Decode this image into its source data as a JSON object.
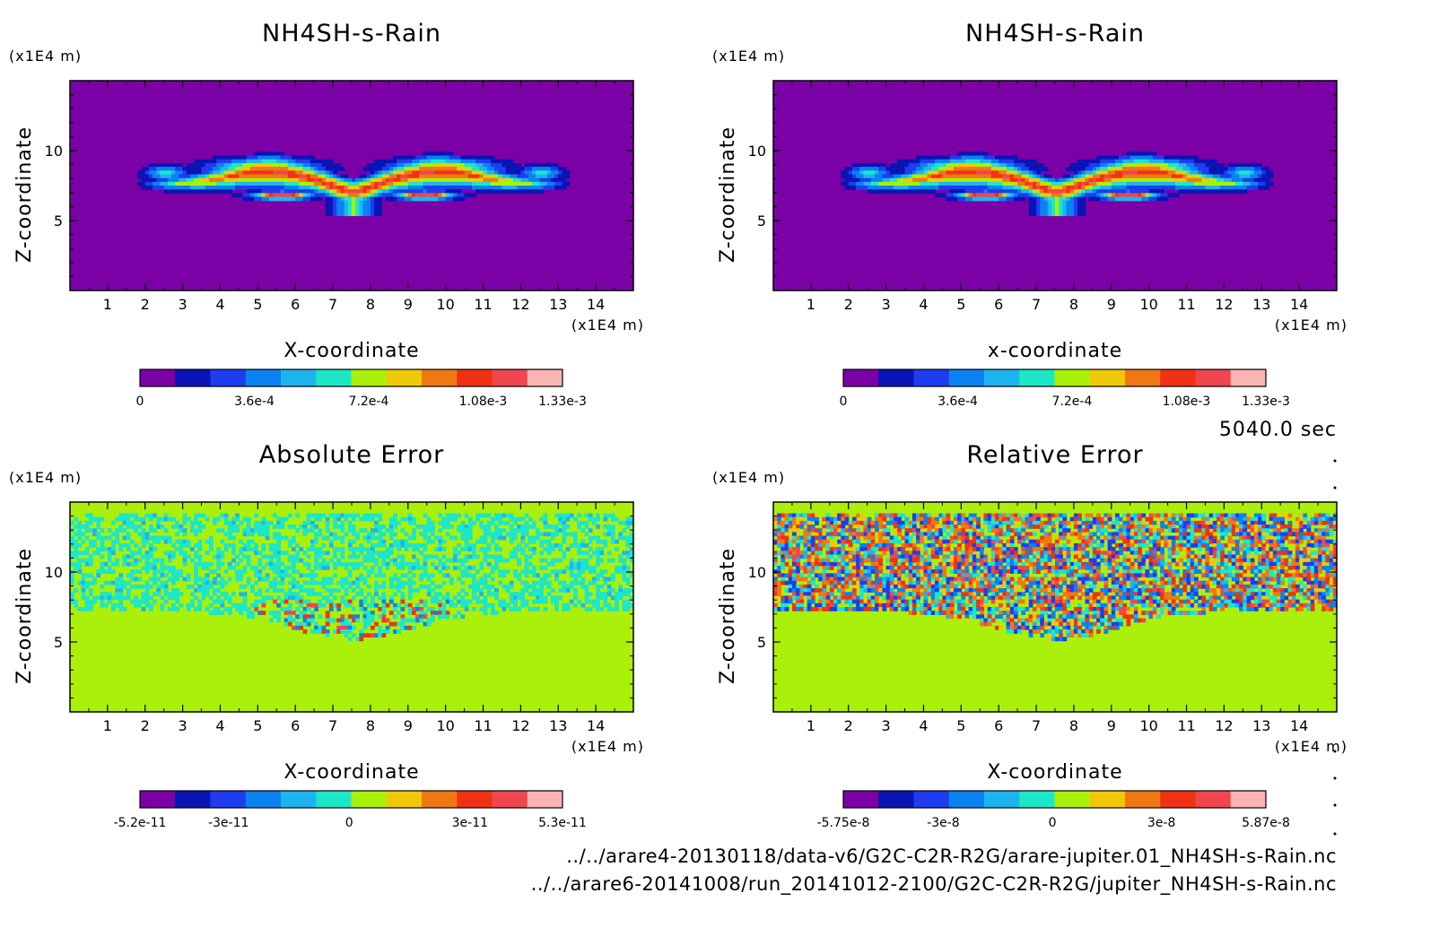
{
  "chart_data": [
    {
      "type": "heatmap",
      "title": "NH4SH-s-Rain",
      "xlabel": "X-coordinate",
      "ylabel": "Z-coordinate",
      "x_unit": "(x1E4 m)",
      "y_unit": "(x1E4 m)",
      "x_ticks": [
        "1",
        "2",
        "3",
        "4",
        "5",
        "6",
        "7",
        "8",
        "9",
        "10",
        "11",
        "12",
        "13",
        "14"
      ],
      "y_ticks": [
        "5",
        "10"
      ],
      "xlim": [
        0,
        15
      ],
      "ylim": [
        0,
        15
      ],
      "pattern": "plume",
      "colorbar": {
        "labels": [
          "0",
          "3.6e-4",
          "7.2e-4",
          "1.08e-3",
          "1.33e-3"
        ],
        "label_values": [
          0,
          0.00036,
          0.00072,
          0.00108,
          0.00133
        ],
        "range": [
          0,
          0.00133
        ],
        "colors": [
          "#7b00a6",
          "#0a14b4",
          "#1e3cf0",
          "#0a82f0",
          "#1eb4f0",
          "#1ee6c8",
          "#aaf00a",
          "#f0c80a",
          "#f07814",
          "#f03214",
          "#f04650",
          "#fab4b4"
        ]
      }
    },
    {
      "type": "heatmap",
      "title": "NH4SH-s-Rain",
      "xlabel": "x-coordinate",
      "ylabel": "Z-coordinate",
      "x_unit": "(x1E4 m)",
      "y_unit": "(x1E4 m)",
      "x_ticks": [
        "1",
        "2",
        "3",
        "4",
        "5",
        "6",
        "7",
        "8",
        "9",
        "10",
        "11",
        "12",
        "13",
        "14"
      ],
      "y_ticks": [
        "5",
        "10"
      ],
      "xlim": [
        0,
        15
      ],
      "ylim": [
        0,
        15
      ],
      "pattern": "plume",
      "colorbar": {
        "labels": [
          "0",
          "3.6e-4",
          "7.2e-4",
          "1.08e-3",
          "1.33e-3"
        ],
        "label_values": [
          0,
          0.00036,
          0.00072,
          0.00108,
          0.00133
        ],
        "range": [
          0,
          0.00133
        ],
        "colors": [
          "#7b00a6",
          "#0a14b4",
          "#1e3cf0",
          "#0a82f0",
          "#1eb4f0",
          "#1ee6c8",
          "#aaf00a",
          "#f0c80a",
          "#f07814",
          "#f03214",
          "#f04650",
          "#fab4b4"
        ]
      }
    },
    {
      "type": "heatmap",
      "title": "Absolute Error",
      "xlabel": "X-coordinate",
      "ylabel": "Z-coordinate",
      "x_unit": "(x1E4 m)",
      "y_unit": "(x1E4 m)",
      "x_ticks": [
        "1",
        "2",
        "3",
        "4",
        "5",
        "6",
        "7",
        "8",
        "9",
        "10",
        "11",
        "12",
        "13",
        "14"
      ],
      "y_ticks": [
        "5",
        "10"
      ],
      "xlim": [
        0,
        15
      ],
      "ylim": [
        0,
        15
      ],
      "pattern": "abs_error",
      "colorbar": {
        "labels": [
          "-5.2e-11",
          "-3e-11",
          "0",
          "3e-11",
          "5.3e-11"
        ],
        "label_values": [
          -5.2e-11,
          -3e-11,
          0,
          3e-11,
          5.3e-11
        ],
        "range": [
          -5.2e-11,
          5.3e-11
        ],
        "colors": [
          "#7b00a6",
          "#0a14b4",
          "#1e3cf0",
          "#0a82f0",
          "#1eb4f0",
          "#1ee6c8",
          "#aaf00a",
          "#f0c80a",
          "#f07814",
          "#f03214",
          "#f04650",
          "#fab4b4"
        ]
      }
    },
    {
      "type": "heatmap",
      "title": "Relative Error",
      "xlabel": "X-coordinate",
      "ylabel": "Z-coordinate",
      "x_unit": "(x1E4 m)",
      "y_unit": "(x1E4 m)",
      "x_ticks": [
        "1",
        "2",
        "3",
        "4",
        "5",
        "6",
        "7",
        "8",
        "9",
        "10",
        "11",
        "12",
        "13",
        "14"
      ],
      "y_ticks": [
        "5",
        "10"
      ],
      "xlim": [
        0,
        15
      ],
      "ylim": [
        0,
        15
      ],
      "pattern": "rel_error",
      "colorbar": {
        "labels": [
          "-5.75e-8",
          "-3e-8",
          "0",
          "3e-8",
          "5.87e-8"
        ],
        "label_values": [
          -5.75e-08,
          -3e-08,
          0,
          3e-08,
          5.87e-08
        ],
        "range": [
          -5.75e-08,
          5.87e-08
        ],
        "colors": [
          "#7b00a6",
          "#0a14b4",
          "#1e3cf0",
          "#0a82f0",
          "#1eb4f0",
          "#1ee6c8",
          "#aaf00a",
          "#f0c80a",
          "#f07814",
          "#f03214",
          "#f04650",
          "#fab4b4"
        ]
      }
    }
  ],
  "time_label": "5040.0 sec",
  "footer_lines": [
    "../../arare4-20130118/data-v6/G2C-C2R-R2G/arare-jupiter.01_NH4SH-s-Rain.nc",
    "../../arare6-20141008/run_20141012-2100/G2C-C2R-R2G/jupiter_NH4SH-s-Rain.nc"
  ]
}
